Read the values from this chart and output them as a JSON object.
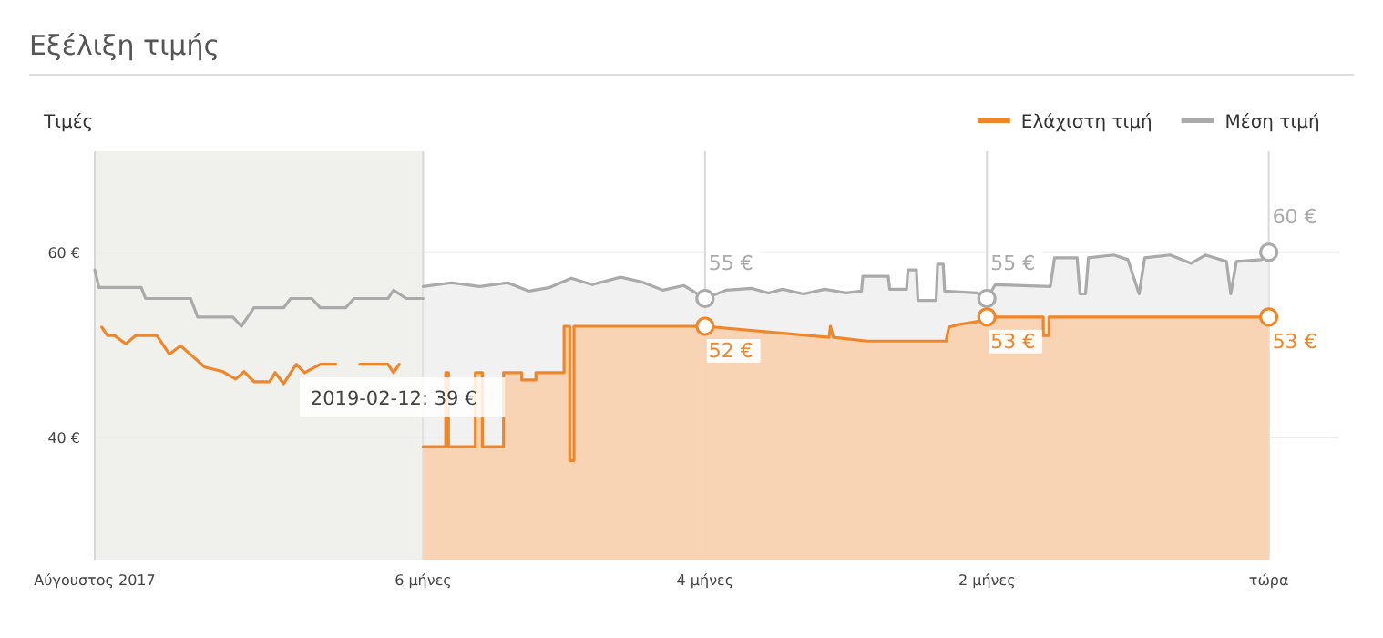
{
  "chart_data": {
    "type": "area",
    "title": "Εξέλιξη τιμής",
    "ylabel": "Τιμές",
    "legend": "top right",
    "grid": true,
    "xlim": [
      -8.33,
      0.5
    ],
    "ylim": [
      26.8,
      70.9
    ],
    "xticks": [
      {
        "value": -8.33,
        "label": "Αύγουστος 2017"
      },
      {
        "value": -6,
        "label": "6 μήνες"
      },
      {
        "value": -4,
        "label": "4 μήνες"
      },
      {
        "value": -2,
        "label": "2 μήνες"
      },
      {
        "value": 0,
        "label": "τώρα"
      }
    ],
    "yticks": [
      {
        "value": 60,
        "label": "60 €"
      },
      {
        "value": 40,
        "label": "40 €"
      }
    ],
    "bands": [
      {
        "axis": "x",
        "from": -8.33,
        "to": -6,
        "color": "#f0f0ec"
      }
    ],
    "annotations": [
      {
        "text": "2019-02-12: 39 €",
        "x": -6,
        "y": 39
      }
    ],
    "series": [
      {
        "name": "Μέση τιμή",
        "color": "#aaaaaa",
        "x": [
          -6,
          -5.8,
          -5.6,
          -5.4,
          -5.25,
          -5.1,
          -4.95,
          -4.8,
          -4.6,
          -4.45,
          -4.3,
          -4.15,
          -4,
          -3.85,
          -3.67,
          -3.55,
          -3.45,
          -3.3,
          -3.15,
          -3.0,
          -2.89,
          -2.88,
          -2.7,
          -2.69,
          -2.57,
          -2.56,
          -2.5,
          -2.49,
          -2.36,
          -2.35,
          -2.31,
          -2.3,
          -2.07,
          -2,
          -1.94,
          -1.55,
          -1.52,
          -1.36,
          -1.34,
          -1.3,
          -1.28,
          -1.1,
          -1.0,
          -0.92,
          -0.88,
          -0.7,
          -0.55,
          -0.45,
          -0.3,
          -0.27,
          -0.23,
          -0.05,
          0
        ],
        "values": [
          56.3,
          56.7,
          56.3,
          56.7,
          55.8,
          56.2,
          57.2,
          56.5,
          57.3,
          56.8,
          55.9,
          56.4,
          55,
          55.9,
          56.1,
          55.6,
          56,
          55.5,
          56,
          55.6,
          55.8,
          57.4,
          57.4,
          56,
          56,
          58.1,
          58.1,
          54.8,
          54.8,
          58.7,
          58.7,
          55.8,
          55.6,
          55,
          56.5,
          56.3,
          59.4,
          59.4,
          55.5,
          55.5,
          59.4,
          59.7,
          59.2,
          55.5,
          59.4,
          59.7,
          58.8,
          59.7,
          59,
          55.5,
          59,
          59.2,
          60
        ],
        "value_labels": [
          null,
          null,
          null,
          null,
          null,
          null,
          null,
          null,
          null,
          null,
          null,
          null,
          "55 €",
          null,
          null,
          null,
          null,
          null,
          null,
          null,
          null,
          null,
          null,
          null,
          null,
          null,
          null,
          null,
          null,
          null,
          null,
          null,
          null,
          "55 €",
          null,
          null,
          null,
          null,
          null,
          null,
          null,
          null,
          null,
          null,
          null,
          null,
          null,
          null,
          null,
          null,
          null,
          null,
          "60 €"
        ]
      },
      {
        "name": "Ελάχιστη τιμή",
        "color": "#f0862a",
        "x": [
          -6,
          -5.84,
          -5.84,
          -5.82,
          -5.82,
          -5.63,
          -5.63,
          -5.58,
          -5.58,
          -5.43,
          -5.43,
          -5.3,
          -5.3,
          -5.2,
          -5.2,
          -5.0,
          -5.0,
          -4.96,
          -4.96,
          -4.93,
          -4.93,
          -4.53,
          -4,
          -3.12,
          -3.11,
          -3.09,
          -2.85,
          -2.29,
          -2.27,
          -2.2,
          -2.07,
          -2,
          -1.6,
          -1.6,
          -1.56,
          -1.56,
          0
        ],
        "values": [
          39,
          39,
          47,
          47,
          39,
          39,
          47,
          47,
          39,
          39,
          47,
          47,
          46.2,
          46.2,
          47,
          47,
          52,
          52,
          37.5,
          37.5,
          52,
          52,
          52,
          50.8,
          52,
          50.8,
          50.4,
          50.4,
          51.9,
          52.2,
          52.5,
          53,
          53,
          51,
          51,
          53,
          53
        ],
        "value_labels": [
          null,
          null,
          null,
          null,
          null,
          null,
          null,
          null,
          null,
          null,
          null,
          null,
          null,
          null,
          null,
          null,
          null,
          null,
          null,
          null,
          null,
          null,
          "52 €",
          null,
          null,
          null,
          null,
          null,
          null,
          null,
          null,
          "53 €",
          null,
          null,
          null,
          null,
          "53 €"
        ]
      },
      {
        "type": "line",
        "color": "#aaaaaa",
        "x": [
          -8.33,
          -8.3,
          -8.0,
          -7.97,
          -7.65,
          -7.6,
          -7.35,
          -7.29,
          -7.2,
          -6.99,
          -6.94,
          -6.79,
          -6.73,
          -6.55,
          -6.49,
          -6.25,
          -6.21,
          -6.12,
          -6.0
        ],
        "values": [
          58.1,
          56.2,
          56.2,
          55,
          55,
          53,
          53,
          52,
          54,
          54,
          55,
          55,
          54,
          54,
          55,
          55,
          55.9,
          55,
          55
        ]
      },
      {
        "type": "line",
        "color": "#f0862a",
        "x": [
          -8.28,
          -8.24,
          -8.19,
          -8.11,
          -8.04,
          -7.89,
          -7.8,
          -7.72,
          -7.55,
          -7.42,
          -7.33,
          -7.27,
          -7.2,
          -7.09,
          -7.05,
          -6.99,
          -6.9,
          -6.84,
          -6.73,
          -6.62,
          -6.55,
          -6.45,
          -6.25,
          -6.21,
          -6.17
        ],
        "values": [
          51.9,
          51,
          51,
          50.1,
          51,
          51,
          49,
          49.9,
          47.6,
          47.1,
          46.3,
          47.1,
          46,
          46,
          47,
          45.8,
          47.9,
          47,
          47.9,
          47.9,
          null,
          47.9,
          47.9,
          47,
          47.9
        ]
      }
    ]
  }
}
